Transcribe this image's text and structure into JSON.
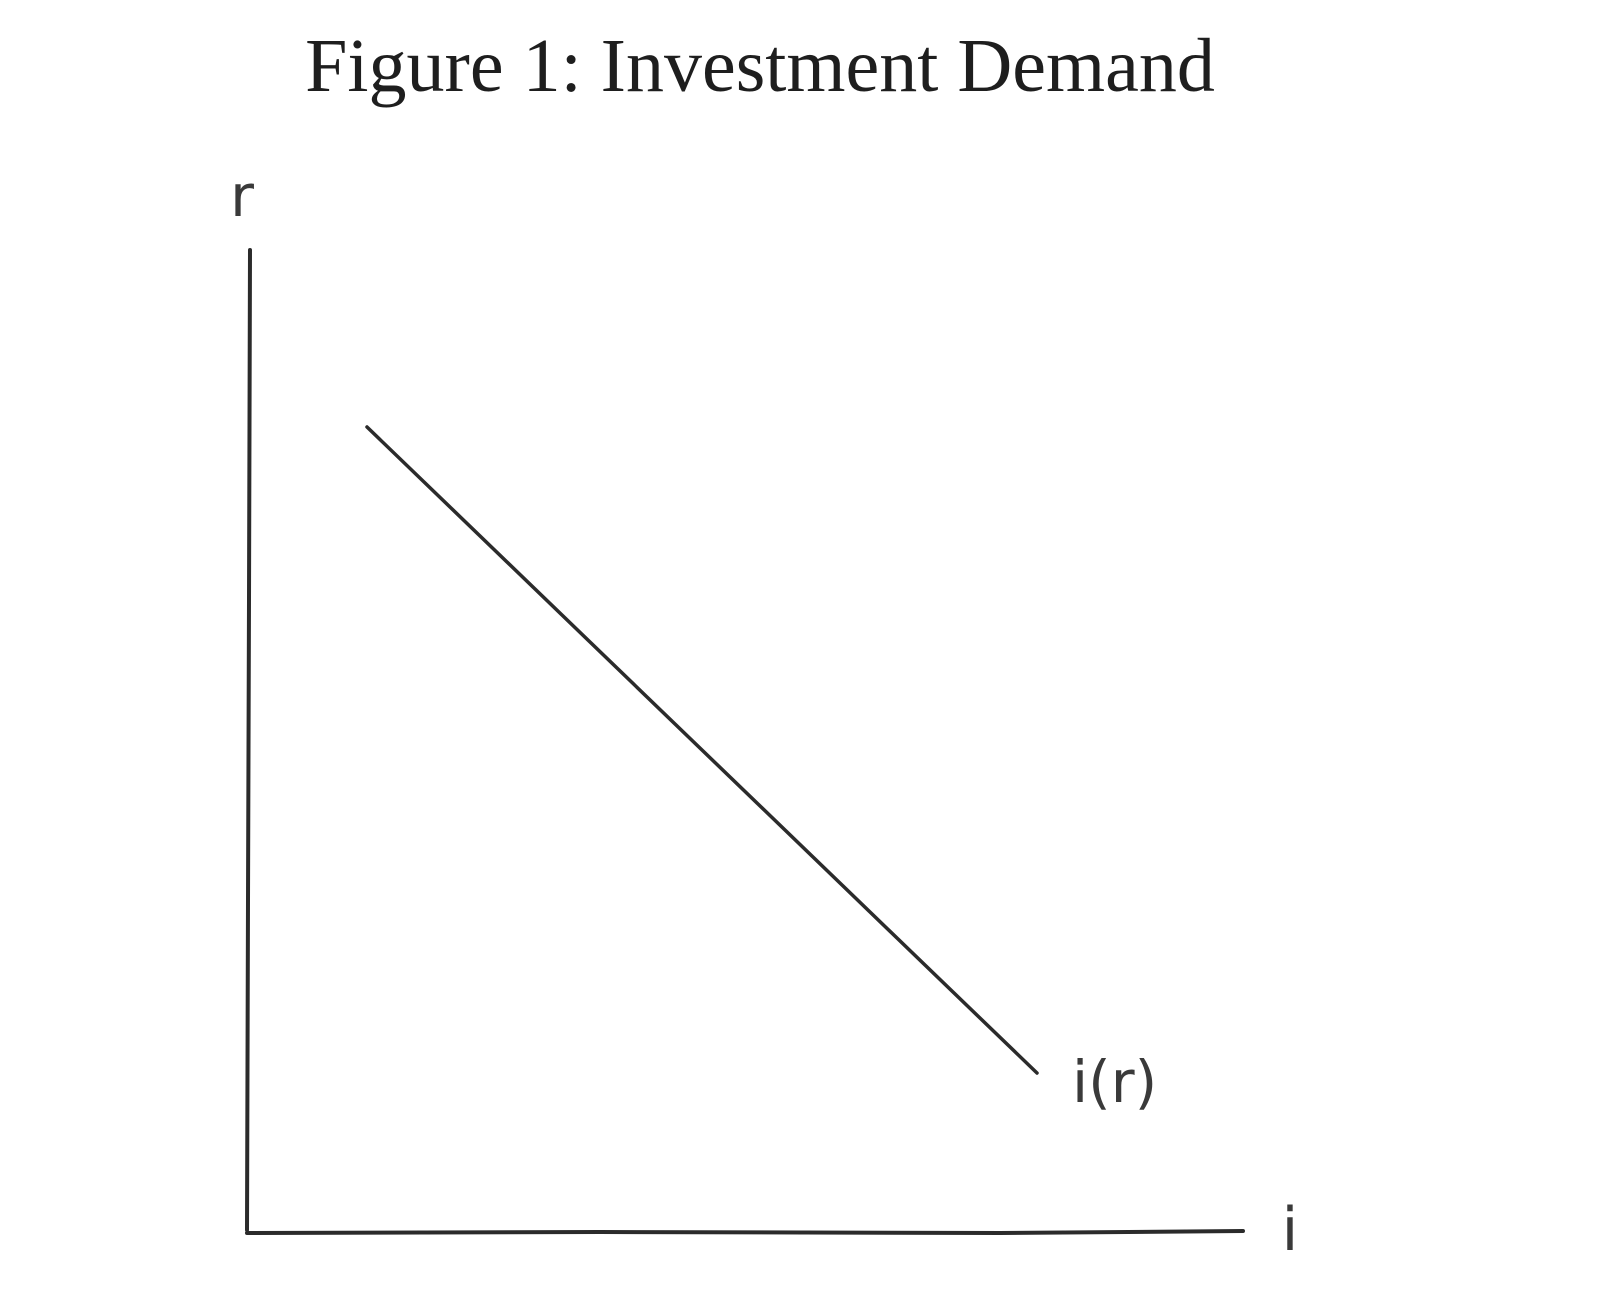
{
  "figure": {
    "title": "Figure 1: Investment Demand"
  },
  "axes": {
    "y_label": "r",
    "x_label": "i"
  },
  "curve": {
    "label": "i(r)"
  },
  "colors": {
    "ink": "#2b2b2b",
    "title": "#1e1e1e"
  }
}
